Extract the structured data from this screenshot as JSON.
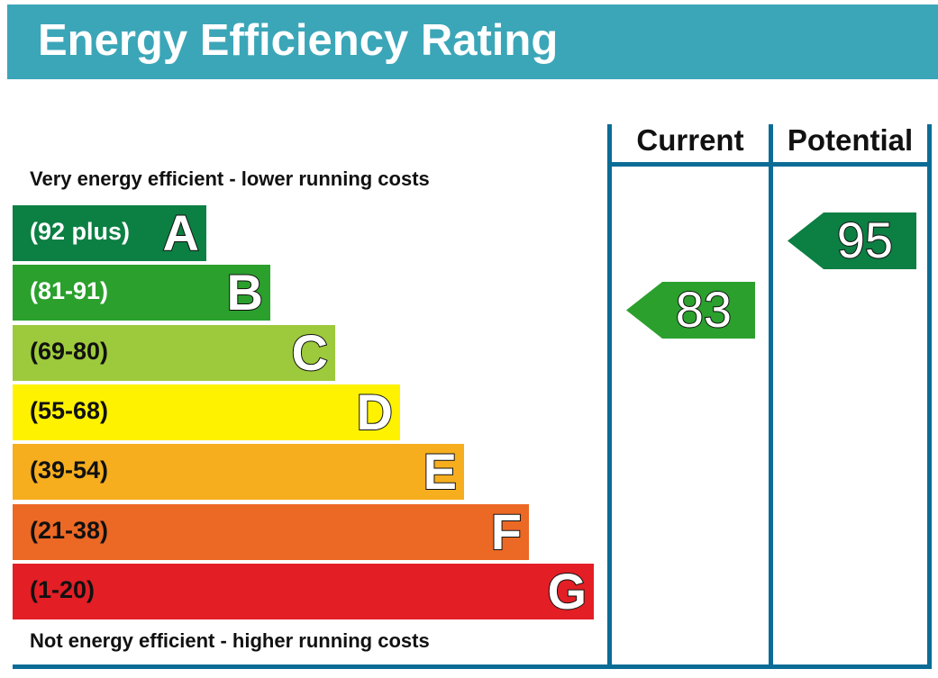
{
  "title": "Energy Efficiency Rating",
  "chart_data": {
    "type": "table",
    "title": "Energy Efficiency Rating",
    "columns": [
      "Current",
      "Potential"
    ],
    "top_note": "Very energy efficient - lower running costs",
    "bottom_note": "Not energy efficient - higher running costs",
    "bands": [
      {
        "letter": "A",
        "range": "(92 plus)",
        "color": "#0c7f43"
      },
      {
        "letter": "B",
        "range": "(81-91)",
        "color": "#2ba02d"
      },
      {
        "letter": "C",
        "range": "(69-80)",
        "color": "#9dca3c"
      },
      {
        "letter": "D",
        "range": "(55-68)",
        "color": "#fff200"
      },
      {
        "letter": "E",
        "range": "(39-54)",
        "color": "#f6ae1e"
      },
      {
        "letter": "F",
        "range": "(21-38)",
        "color": "#ec6825"
      },
      {
        "letter": "G",
        "range": "(1-20)",
        "color": "#e31e25"
      }
    ],
    "current": {
      "value": "83",
      "band": "B",
      "color": "#2ba02d"
    },
    "potential": {
      "value": "95",
      "band": "A",
      "color": "#0c7f43"
    }
  }
}
